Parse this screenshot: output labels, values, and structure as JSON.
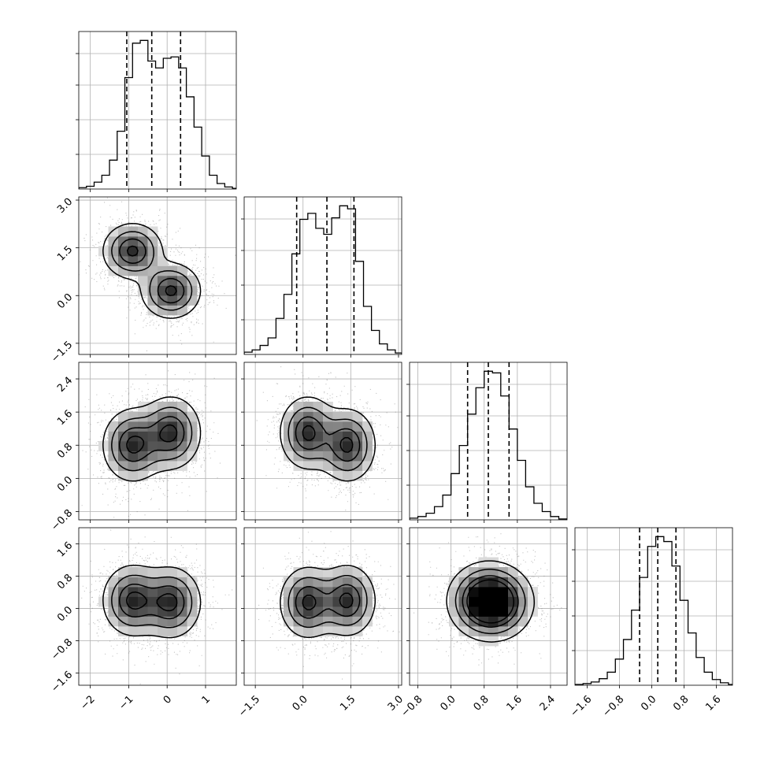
{
  "chart_data": {
    "type": "corner",
    "dims": 4,
    "grid": true,
    "colors": {
      "hist": "#000000",
      "quantile": "#000000",
      "scatter": "#555555",
      "contour": "#000000"
    },
    "axes": [
      {
        "range": [
          -2.3,
          1.8
        ],
        "ticks": [
          -2,
          -1,
          0,
          1
        ],
        "tick_labels": [
          "−2",
          "−1",
          "0",
          "1"
        ]
      },
      {
        "range": [
          -1.85,
          3.1
        ],
        "ticks": [
          -1.5,
          0.0,
          1.5,
          3.0
        ],
        "tick_labels": [
          "−1.5",
          "0.0",
          "1.5",
          "3.0"
        ]
      },
      {
        "range": [
          -1.0,
          2.8
        ],
        "ticks": [
          -0.8,
          0.0,
          0.8,
          1.6,
          2.4
        ],
        "tick_labels": [
          "−0.8",
          "0.0",
          "0.8",
          "1.6",
          "2.4"
        ]
      },
      {
        "range": [
          -1.9,
          2.0
        ],
        "ticks": [
          -1.6,
          -0.8,
          0.0,
          0.8,
          1.6
        ],
        "tick_labels": [
          "−1.6",
          "−0.8",
          "0.0",
          "0.8",
          "1.6"
        ]
      }
    ],
    "marginals": [
      {
        "quantiles": [
          -1.05,
          -0.4,
          0.35
        ],
        "bins": [
          {
            "x0": -2.3,
            "x1": -2.1,
            "h": 2
          },
          {
            "x0": -2.1,
            "x1": -1.9,
            "h": 4
          },
          {
            "x0": -1.9,
            "x1": -1.7,
            "h": 10
          },
          {
            "x0": -1.7,
            "x1": -1.5,
            "h": 20
          },
          {
            "x0": -1.5,
            "x1": -1.3,
            "h": 42
          },
          {
            "x0": -1.3,
            "x1": -1.1,
            "h": 84
          },
          {
            "x0": -1.1,
            "x1": -0.9,
            "h": 162
          },
          {
            "x0": -0.9,
            "x1": -0.7,
            "h": 212
          },
          {
            "x0": -0.7,
            "x1": -0.5,
            "h": 216
          },
          {
            "x0": -0.5,
            "x1": -0.3,
            "h": 186
          },
          {
            "x0": -0.3,
            "x1": -0.1,
            "h": 176
          },
          {
            "x0": -0.1,
            "x1": 0.1,
            "h": 190
          },
          {
            "x0": 0.1,
            "x1": 0.3,
            "h": 192
          },
          {
            "x0": 0.3,
            "x1": 0.5,
            "h": 176
          },
          {
            "x0": 0.5,
            "x1": 0.7,
            "h": 134
          },
          {
            "x0": 0.7,
            "x1": 0.9,
            "h": 90
          },
          {
            "x0": 0.9,
            "x1": 1.1,
            "h": 48
          },
          {
            "x0": 1.1,
            "x1": 1.3,
            "h": 20
          },
          {
            "x0": 1.3,
            "x1": 1.5,
            "h": 8
          },
          {
            "x0": 1.5,
            "x1": 1.7,
            "h": 3
          },
          {
            "x0": 1.7,
            "x1": 1.8,
            "h": 1
          }
        ]
      },
      {
        "quantiles": [
          -0.2,
          0.75,
          1.6
        ],
        "bins": [
          {
            "x0": -1.85,
            "x1": -1.6,
            "h": 3
          },
          {
            "x0": -1.6,
            "x1": -1.35,
            "h": 6
          },
          {
            "x0": -1.35,
            "x1": -1.1,
            "h": 12
          },
          {
            "x0": -1.1,
            "x1": -0.85,
            "h": 22
          },
          {
            "x0": -0.85,
            "x1": -0.6,
            "h": 48
          },
          {
            "x0": -0.6,
            "x1": -0.35,
            "h": 80
          },
          {
            "x0": -0.35,
            "x1": -0.1,
            "h": 134
          },
          {
            "x0": -0.1,
            "x1": 0.15,
            "h": 180
          },
          {
            "x0": 0.15,
            "x1": 0.4,
            "h": 188
          },
          {
            "x0": 0.4,
            "x1": 0.65,
            "h": 168
          },
          {
            "x0": 0.65,
            "x1": 0.9,
            "h": 160
          },
          {
            "x0": 0.9,
            "x1": 1.15,
            "h": 182
          },
          {
            "x0": 1.15,
            "x1": 1.4,
            "h": 198
          },
          {
            "x0": 1.4,
            "x1": 1.65,
            "h": 194
          },
          {
            "x0": 1.65,
            "x1": 1.9,
            "h": 124
          },
          {
            "x0": 1.9,
            "x1": 2.15,
            "h": 64
          },
          {
            "x0": 2.15,
            "x1": 2.4,
            "h": 32
          },
          {
            "x0": 2.4,
            "x1": 2.65,
            "h": 14
          },
          {
            "x0": 2.65,
            "x1": 2.9,
            "h": 6
          },
          {
            "x0": 2.9,
            "x1": 3.1,
            "h": 2
          }
        ]
      },
      {
        "quantiles": [
          0.4,
          0.9,
          1.4
        ],
        "bins": [
          {
            "x0": -1.0,
            "x1": -0.8,
            "h": 2
          },
          {
            "x0": -0.8,
            "x1": -0.6,
            "h": 4
          },
          {
            "x0": -0.6,
            "x1": -0.4,
            "h": 8
          },
          {
            "x0": -0.4,
            "x1": -0.2,
            "h": 16
          },
          {
            "x0": -0.2,
            "x1": 0.0,
            "h": 30
          },
          {
            "x0": 0.0,
            "x1": 0.2,
            "h": 56
          },
          {
            "x0": 0.2,
            "x1": 0.4,
            "h": 90
          },
          {
            "x0": 0.4,
            "x1": 0.6,
            "h": 128
          },
          {
            "x0": 0.6,
            "x1": 0.8,
            "h": 160
          },
          {
            "x0": 0.8,
            "x1": 1.0,
            "h": 180
          },
          {
            "x0": 1.0,
            "x1": 1.2,
            "h": 178
          },
          {
            "x0": 1.2,
            "x1": 1.4,
            "h": 150
          },
          {
            "x0": 1.4,
            "x1": 1.6,
            "h": 110
          },
          {
            "x0": 1.6,
            "x1": 1.8,
            "h": 72
          },
          {
            "x0": 1.8,
            "x1": 2.0,
            "h": 40
          },
          {
            "x0": 2.0,
            "x1": 2.2,
            "h": 20
          },
          {
            "x0": 2.2,
            "x1": 2.4,
            "h": 10
          },
          {
            "x0": 2.4,
            "x1": 2.6,
            "h": 4
          },
          {
            "x0": 2.6,
            "x1": 2.8,
            "h": 1
          }
        ]
      },
      {
        "quantiles": [
          -0.3,
          0.15,
          0.6
        ],
        "bins": [
          {
            "x0": -1.9,
            "x1": -1.7,
            "h": 1
          },
          {
            "x0": -1.7,
            "x1": -1.5,
            "h": 2
          },
          {
            "x0": -1.5,
            "x1": -1.3,
            "h": 4
          },
          {
            "x0": -1.3,
            "x1": -1.1,
            "h": 8
          },
          {
            "x0": -1.1,
            "x1": -0.9,
            "h": 16
          },
          {
            "x0": -0.9,
            "x1": -0.7,
            "h": 32
          },
          {
            "x0": -0.7,
            "x1": -0.5,
            "h": 56
          },
          {
            "x0": -0.5,
            "x1": -0.3,
            "h": 92
          },
          {
            "x0": -0.3,
            "x1": -0.1,
            "h": 132
          },
          {
            "x0": -0.1,
            "x1": 0.1,
            "h": 170
          },
          {
            "x0": 0.1,
            "x1": 0.3,
            "h": 182
          },
          {
            "x0": 0.3,
            "x1": 0.5,
            "h": 176
          },
          {
            "x0": 0.5,
            "x1": 0.7,
            "h": 146
          },
          {
            "x0": 0.7,
            "x1": 0.9,
            "h": 104
          },
          {
            "x0": 0.9,
            "x1": 1.1,
            "h": 64
          },
          {
            "x0": 1.1,
            "x1": 1.3,
            "h": 34
          },
          {
            "x0": 1.3,
            "x1": 1.5,
            "h": 16
          },
          {
            "x0": 1.5,
            "x1": 1.7,
            "h": 7
          },
          {
            "x0": 1.7,
            "x1": 1.9,
            "h": 3
          },
          {
            "x0": 1.9,
            "x1": 2.0,
            "h": 1
          }
        ]
      }
    ],
    "joint_modes": [
      {
        "weight": 0.5,
        "mean": [
          -0.9,
          1.4,
          0.8,
          0.2
        ]
      },
      {
        "weight": 0.5,
        "mean": [
          0.1,
          0.15,
          1.1,
          0.15
        ]
      }
    ],
    "joint_sd": [
      0.4,
      0.45,
      0.45,
      0.45
    ]
  }
}
